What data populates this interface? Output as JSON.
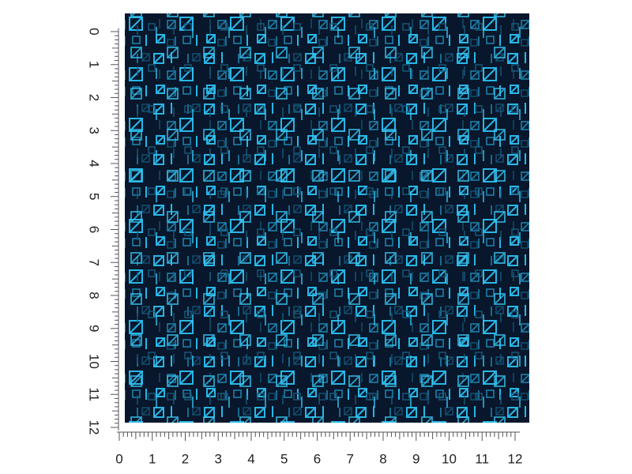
{
  "ruler": {
    "left": {
      "labels": [
        0,
        1,
        2,
        3,
        4,
        5,
        6,
        7,
        8,
        9,
        10,
        11,
        12
      ]
    },
    "bottom": {
      "labels": [
        0,
        1,
        2,
        3,
        4,
        5,
        6,
        7,
        8,
        9,
        10,
        11,
        12
      ]
    }
  }
}
